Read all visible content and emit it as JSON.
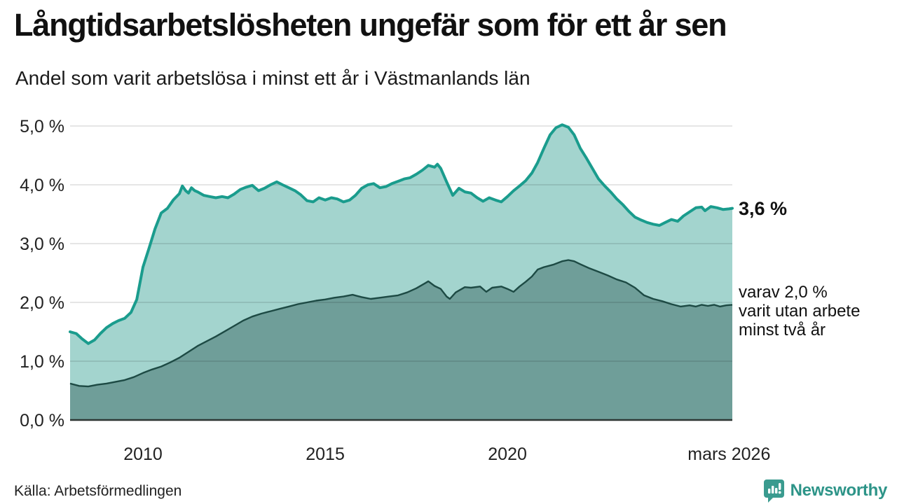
{
  "header": {
    "title": "Långtidsarbetslösheten ungefär som för ett år sen",
    "subtitle": "Andel som varit arbetslösa i minst ett år i Västmanlands län"
  },
  "annotations": {
    "latest_value": "3,6 %",
    "secondary_line1": "varav 2,0 %",
    "secondary_line2": "varit utan arbete",
    "secondary_line3": "minst två år"
  },
  "footer": {
    "source": "Källa: Arbetsförmedlingen",
    "brand": "Newsworthy"
  },
  "colors": {
    "line_1year": "#1a9c8d",
    "fill_1year": "#a3d4ce",
    "line_2year": "#1d4a44",
    "fill_2year": "#6f9e99",
    "gridline": "rgba(0,0,0,0.10)",
    "axis_line": "#2e3634",
    "brand_teal": "#2d9488",
    "text": "#111111"
  },
  "chart_data": {
    "type": "area",
    "title": "Långtidsarbetslösheten ungefär som för ett år sen",
    "subtitle": "Andel som varit arbetslösa i minst ett år i Västmanlands län",
    "xlabel": "",
    "ylabel": "",
    "xlim": [
      2008.0,
      2026.17
    ],
    "ylim": [
      0,
      5
    ],
    "grid": true,
    "legend_position": "right-annotations",
    "y_ticks": [
      {
        "v": 0,
        "label": "0,0 %"
      },
      {
        "v": 1,
        "label": "1,0 %"
      },
      {
        "v": 2,
        "label": "2,0 %"
      },
      {
        "v": 3,
        "label": "3,0 %"
      },
      {
        "v": 4,
        "label": "4,0 %"
      },
      {
        "v": 5,
        "label": "5,0 %"
      }
    ],
    "x_ticks": [
      {
        "v": 2010,
        "label": "2010"
      },
      {
        "v": 2015,
        "label": "2015"
      },
      {
        "v": 2020,
        "label": "2020"
      },
      {
        "v": 2026.08,
        "label": "mars 2026"
      }
    ],
    "series": [
      {
        "name": "Andel arbetslösa minst ett år",
        "end_label": "3,6 %",
        "points": [
          [
            2008.0,
            1.5
          ],
          [
            2008.17,
            1.47
          ],
          [
            2008.33,
            1.38
          ],
          [
            2008.5,
            1.3
          ],
          [
            2008.67,
            1.36
          ],
          [
            2008.83,
            1.47
          ],
          [
            2009.0,
            1.57
          ],
          [
            2009.17,
            1.64
          ],
          [
            2009.33,
            1.69
          ],
          [
            2009.5,
            1.73
          ],
          [
            2009.67,
            1.83
          ],
          [
            2009.83,
            2.05
          ],
          [
            2010.0,
            2.6
          ],
          [
            2010.17,
            2.93
          ],
          [
            2010.33,
            3.25
          ],
          [
            2010.5,
            3.52
          ],
          [
            2010.67,
            3.6
          ],
          [
            2010.83,
            3.74
          ],
          [
            2011.0,
            3.85
          ],
          [
            2011.08,
            3.98
          ],
          [
            2011.17,
            3.9
          ],
          [
            2011.25,
            3.86
          ],
          [
            2011.33,
            3.95
          ],
          [
            2011.42,
            3.9
          ],
          [
            2011.5,
            3.88
          ],
          [
            2011.67,
            3.82
          ],
          [
            2011.83,
            3.8
          ],
          [
            2012.0,
            3.78
          ],
          [
            2012.17,
            3.8
          ],
          [
            2012.33,
            3.78
          ],
          [
            2012.5,
            3.84
          ],
          [
            2012.67,
            3.92
          ],
          [
            2012.83,
            3.96
          ],
          [
            2013.0,
            3.99
          ],
          [
            2013.17,
            3.9
          ],
          [
            2013.33,
            3.94
          ],
          [
            2013.5,
            4.0
          ],
          [
            2013.67,
            4.05
          ],
          [
            2013.83,
            4.0
          ],
          [
            2014.0,
            3.95
          ],
          [
            2014.17,
            3.9
          ],
          [
            2014.33,
            3.83
          ],
          [
            2014.5,
            3.73
          ],
          [
            2014.67,
            3.71
          ],
          [
            2014.83,
            3.78
          ],
          [
            2015.0,
            3.74
          ],
          [
            2015.17,
            3.78
          ],
          [
            2015.33,
            3.76
          ],
          [
            2015.5,
            3.71
          ],
          [
            2015.67,
            3.74
          ],
          [
            2015.83,
            3.82
          ],
          [
            2016.0,
            3.94
          ],
          [
            2016.17,
            4.0
          ],
          [
            2016.33,
            4.02
          ],
          [
            2016.5,
            3.95
          ],
          [
            2016.67,
            3.97
          ],
          [
            2016.83,
            4.02
          ],
          [
            2017.0,
            4.06
          ],
          [
            2017.17,
            4.1
          ],
          [
            2017.33,
            4.12
          ],
          [
            2017.5,
            4.18
          ],
          [
            2017.67,
            4.25
          ],
          [
            2017.83,
            4.33
          ],
          [
            2018.0,
            4.3
          ],
          [
            2018.08,
            4.35
          ],
          [
            2018.17,
            4.28
          ],
          [
            2018.33,
            4.05
          ],
          [
            2018.5,
            3.82
          ],
          [
            2018.67,
            3.94
          ],
          [
            2018.83,
            3.88
          ],
          [
            2019.0,
            3.86
          ],
          [
            2019.17,
            3.78
          ],
          [
            2019.33,
            3.72
          ],
          [
            2019.5,
            3.78
          ],
          [
            2019.67,
            3.74
          ],
          [
            2019.83,
            3.71
          ],
          [
            2020.0,
            3.8
          ],
          [
            2020.17,
            3.9
          ],
          [
            2020.33,
            3.98
          ],
          [
            2020.5,
            4.07
          ],
          [
            2020.67,
            4.2
          ],
          [
            2020.83,
            4.38
          ],
          [
            2021.0,
            4.62
          ],
          [
            2021.17,
            4.85
          ],
          [
            2021.33,
            4.97
          ],
          [
            2021.5,
            5.02
          ],
          [
            2021.67,
            4.98
          ],
          [
            2021.83,
            4.85
          ],
          [
            2022.0,
            4.62
          ],
          [
            2022.17,
            4.45
          ],
          [
            2022.33,
            4.28
          ],
          [
            2022.5,
            4.1
          ],
          [
            2022.67,
            3.98
          ],
          [
            2022.83,
            3.88
          ],
          [
            2023.0,
            3.76
          ],
          [
            2023.17,
            3.66
          ],
          [
            2023.33,
            3.55
          ],
          [
            2023.5,
            3.45
          ],
          [
            2023.67,
            3.4
          ],
          [
            2023.83,
            3.36
          ],
          [
            2024.0,
            3.33
          ],
          [
            2024.17,
            3.31
          ],
          [
            2024.33,
            3.36
          ],
          [
            2024.5,
            3.41
          ],
          [
            2024.67,
            3.38
          ],
          [
            2024.83,
            3.47
          ],
          [
            2025.0,
            3.54
          ],
          [
            2025.17,
            3.61
          ],
          [
            2025.33,
            3.62
          ],
          [
            2025.42,
            3.56
          ],
          [
            2025.58,
            3.63
          ],
          [
            2025.75,
            3.61
          ],
          [
            2025.92,
            3.58
          ],
          [
            2026.08,
            3.59
          ],
          [
            2026.17,
            3.6
          ]
        ]
      },
      {
        "name": "varav utan arbete minst två år",
        "end_label": "varav 2,0 % varit utan arbete minst två år",
        "points": [
          [
            2008.0,
            0.62
          ],
          [
            2008.25,
            0.58
          ],
          [
            2008.5,
            0.57
          ],
          [
            2008.75,
            0.6
          ],
          [
            2009.0,
            0.62
          ],
          [
            2009.25,
            0.65
          ],
          [
            2009.5,
            0.68
          ],
          [
            2009.75,
            0.73
          ],
          [
            2010.0,
            0.8
          ],
          [
            2010.25,
            0.86
          ],
          [
            2010.5,
            0.91
          ],
          [
            2010.75,
            0.98
          ],
          [
            2011.0,
            1.06
          ],
          [
            2011.25,
            1.16
          ],
          [
            2011.5,
            1.26
          ],
          [
            2011.75,
            1.34
          ],
          [
            2012.0,
            1.42
          ],
          [
            2012.25,
            1.51
          ],
          [
            2012.5,
            1.6
          ],
          [
            2012.75,
            1.69
          ],
          [
            2013.0,
            1.76
          ],
          [
            2013.25,
            1.81
          ],
          [
            2013.5,
            1.85
          ],
          [
            2013.75,
            1.89
          ],
          [
            2014.0,
            1.93
          ],
          [
            2014.25,
            1.97
          ],
          [
            2014.5,
            2.0
          ],
          [
            2014.75,
            2.03
          ],
          [
            2015.0,
            2.05
          ],
          [
            2015.25,
            2.08
          ],
          [
            2015.5,
            2.1
          ],
          [
            2015.75,
            2.13
          ],
          [
            2016.0,
            2.09
          ],
          [
            2016.25,
            2.06
          ],
          [
            2016.5,
            2.08
          ],
          [
            2016.75,
            2.1
          ],
          [
            2017.0,
            2.12
          ],
          [
            2017.25,
            2.17
          ],
          [
            2017.5,
            2.24
          ],
          [
            2017.75,
            2.33
          ],
          [
            2017.83,
            2.36
          ],
          [
            2018.0,
            2.28
          ],
          [
            2018.17,
            2.23
          ],
          [
            2018.33,
            2.1
          ],
          [
            2018.42,
            2.06
          ],
          [
            2018.58,
            2.17
          ],
          [
            2018.83,
            2.26
          ],
          [
            2019.0,
            2.25
          ],
          [
            2019.25,
            2.27
          ],
          [
            2019.42,
            2.18
          ],
          [
            2019.58,
            2.25
          ],
          [
            2019.83,
            2.27
          ],
          [
            2020.0,
            2.23
          ],
          [
            2020.17,
            2.18
          ],
          [
            2020.33,
            2.27
          ],
          [
            2020.5,
            2.35
          ],
          [
            2020.67,
            2.44
          ],
          [
            2020.83,
            2.56
          ],
          [
            2021.0,
            2.6
          ],
          [
            2021.25,
            2.64
          ],
          [
            2021.5,
            2.7
          ],
          [
            2021.67,
            2.72
          ],
          [
            2021.83,
            2.7
          ],
          [
            2022.0,
            2.65
          ],
          [
            2022.25,
            2.58
          ],
          [
            2022.5,
            2.52
          ],
          [
            2022.75,
            2.46
          ],
          [
            2023.0,
            2.39
          ],
          [
            2023.25,
            2.34
          ],
          [
            2023.5,
            2.25
          ],
          [
            2023.75,
            2.12
          ],
          [
            2024.0,
            2.06
          ],
          [
            2024.25,
            2.02
          ],
          [
            2024.5,
            1.97
          ],
          [
            2024.75,
            1.93
          ],
          [
            2025.0,
            1.95
          ],
          [
            2025.17,
            1.93
          ],
          [
            2025.33,
            1.96
          ],
          [
            2025.5,
            1.94
          ],
          [
            2025.67,
            1.96
          ],
          [
            2025.83,
            1.93
          ],
          [
            2026.0,
            1.95
          ],
          [
            2026.17,
            1.96
          ]
        ]
      }
    ]
  }
}
